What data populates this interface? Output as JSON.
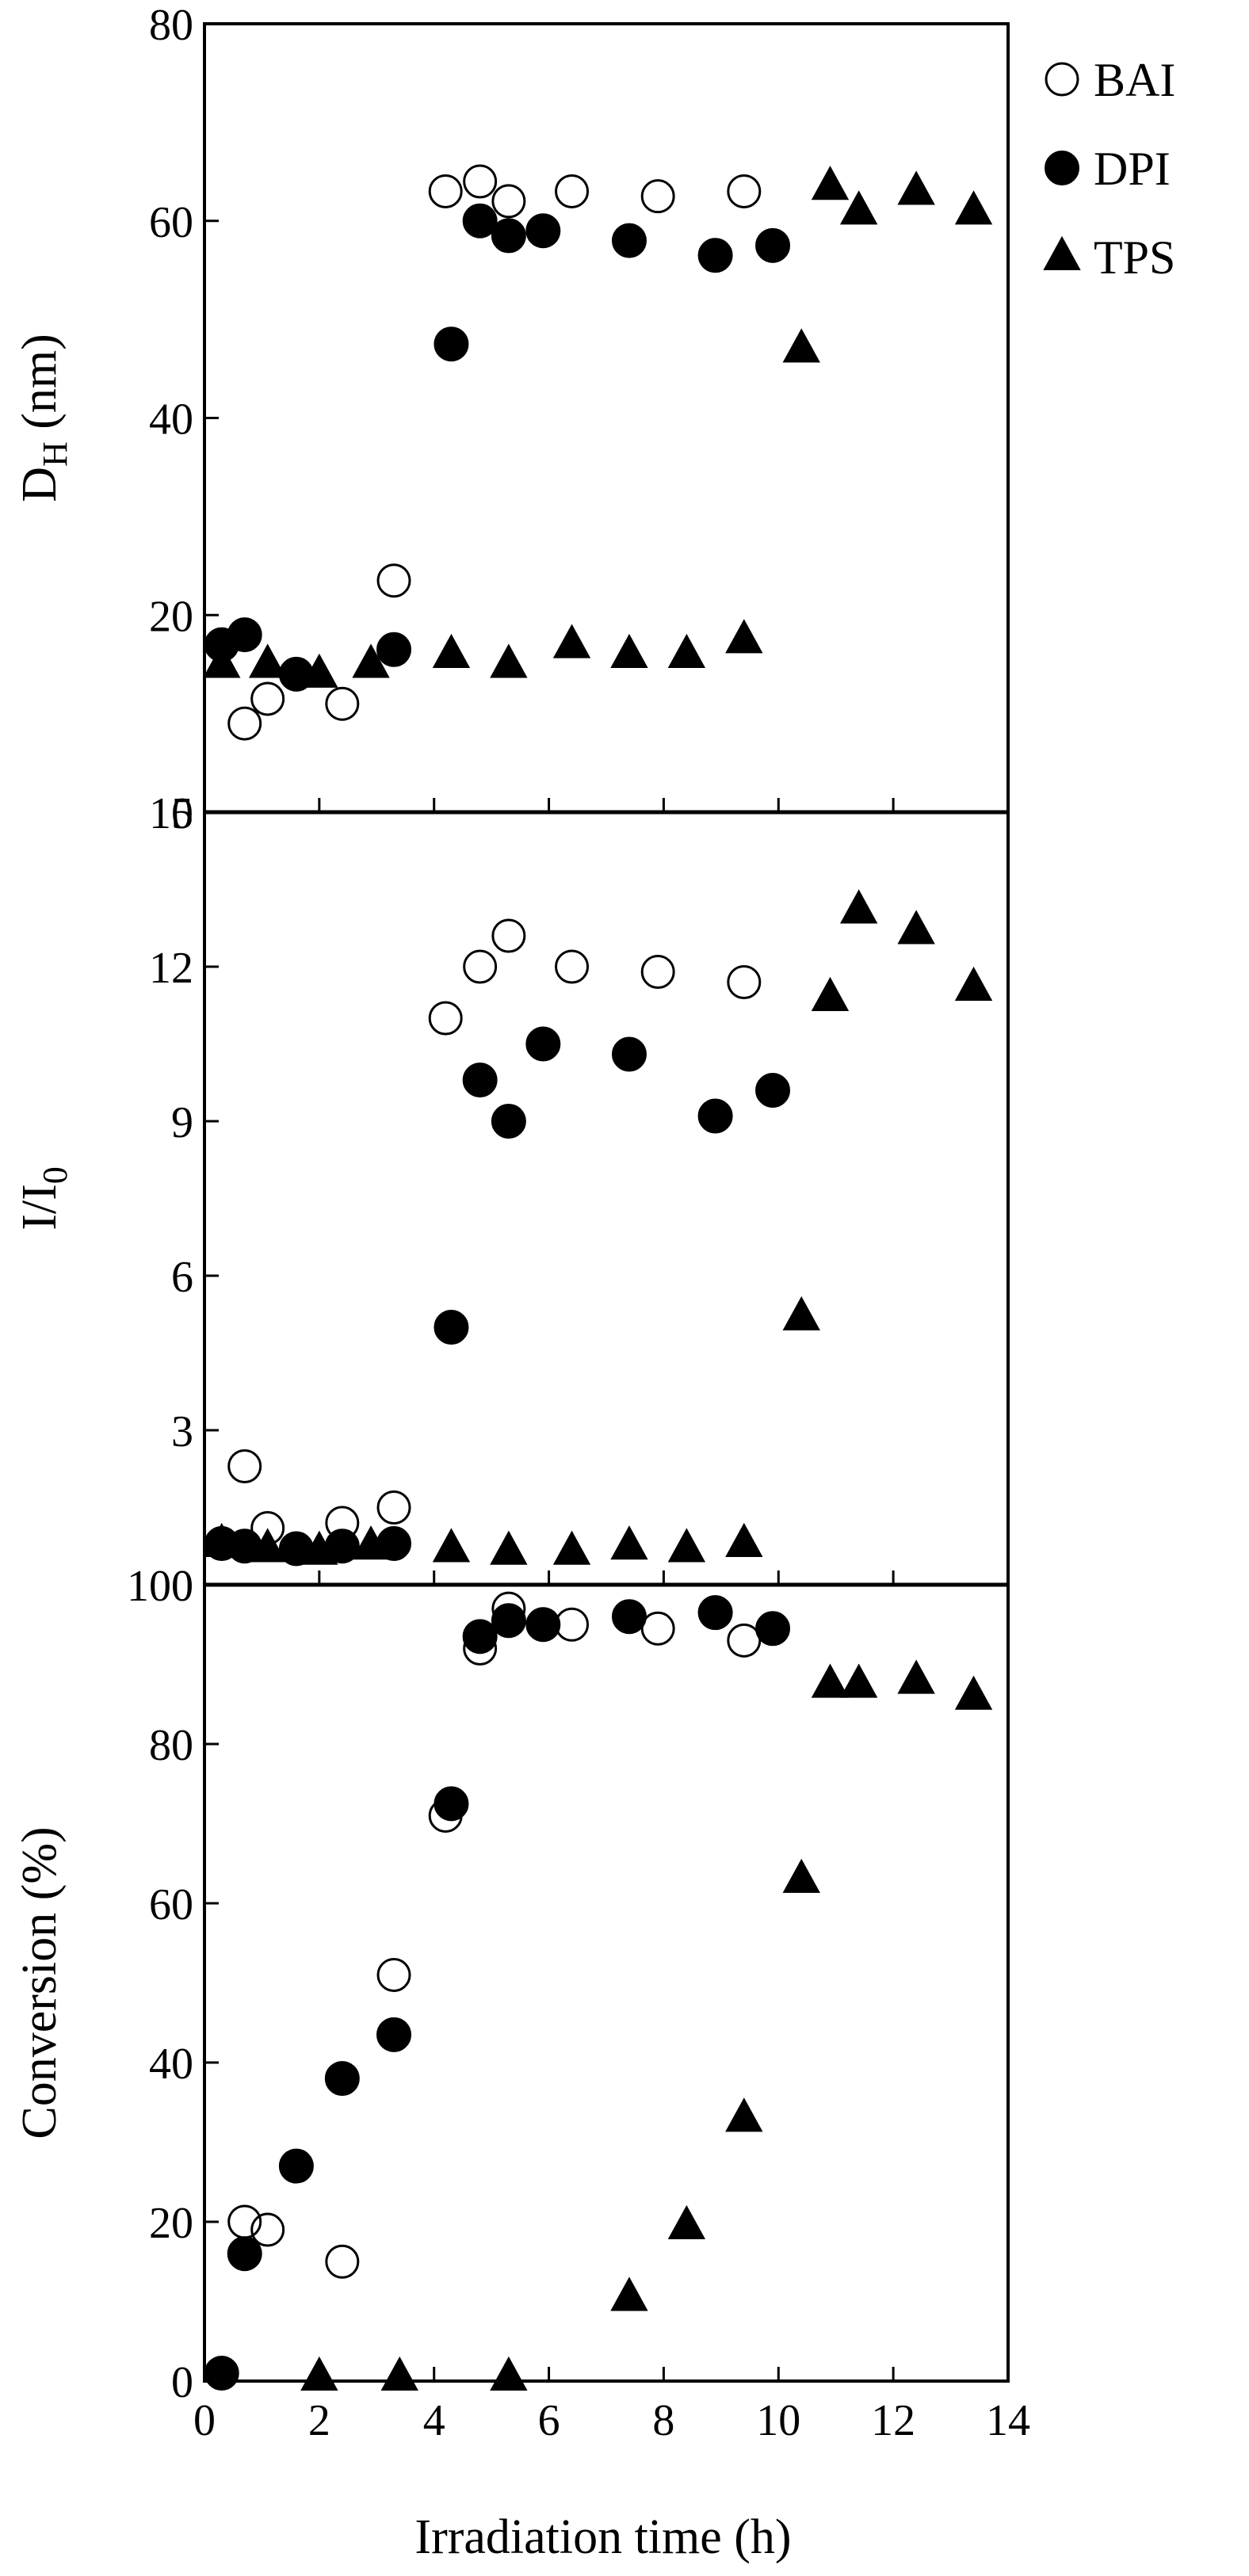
{
  "figure": {
    "xlabel": "Irradiation time (h)",
    "legend": {
      "placement": "top-right",
      "entries": [
        {
          "name": "BAI",
          "marker": "open-circle"
        },
        {
          "name": "DPI",
          "marker": "filled-circle"
        },
        {
          "name": "TPS",
          "marker": "filled-triangle"
        }
      ]
    },
    "colors": {
      "marker": "#000000",
      "background": "#ffffff"
    }
  },
  "chart_data": [
    {
      "type": "scatter",
      "panel": "top",
      "title": "",
      "xlabel": "",
      "ylabel_main": "D",
      "ylabel_sub": "H",
      "ylabel_tail": " (nm)",
      "xlim": [
        0,
        14
      ],
      "ylim": [
        0,
        80
      ],
      "xticks": [
        0,
        2,
        4,
        6,
        8,
        10,
        12,
        14
      ],
      "yticks": [
        0,
        20,
        40,
        60,
        80
      ],
      "xtick_labels_shown": false,
      "series": [
        {
          "name": "BAI",
          "marker": "open-circle",
          "points": [
            [
              0.7,
              9
            ],
            [
              1.1,
              11.5
            ],
            [
              2.4,
              11
            ],
            [
              3.3,
              23.5
            ],
            [
              4.2,
              63
            ],
            [
              4.8,
              64
            ],
            [
              5.3,
              62
            ],
            [
              6.4,
              63
            ],
            [
              7.9,
              62.5
            ],
            [
              9.4,
              63
            ]
          ]
        },
        {
          "name": "DPI",
          "marker": "filled-circle",
          "points": [
            [
              0.3,
              17
            ],
            [
              0.7,
              18
            ],
            [
              1.6,
              14
            ],
            [
              3.3,
              16.5
            ],
            [
              4.3,
              47.5
            ],
            [
              4.8,
              60
            ],
            [
              5.3,
              58.5
            ],
            [
              5.9,
              59
            ],
            [
              7.4,
              58
            ],
            [
              8.9,
              56.5
            ],
            [
              9.9,
              57.5
            ]
          ]
        },
        {
          "name": "TPS",
          "marker": "filled-triangle",
          "points": [
            [
              0.3,
              15
            ],
            [
              1.1,
              15
            ],
            [
              2.0,
              14
            ],
            [
              2.9,
              15
            ],
            [
              4.3,
              16
            ],
            [
              5.3,
              15
            ],
            [
              6.4,
              17
            ],
            [
              7.4,
              16
            ],
            [
              8.4,
              16
            ],
            [
              9.4,
              17.5
            ],
            [
              10.4,
              47
            ],
            [
              10.9,
              63.5
            ],
            [
              11.4,
              61
            ],
            [
              12.4,
              63
            ],
            [
              13.4,
              61
            ]
          ]
        }
      ]
    },
    {
      "type": "scatter",
      "panel": "middle",
      "title": "",
      "xlabel": "",
      "ylabel_main": "I/I",
      "ylabel_sub": "0",
      "ylabel_tail": "",
      "xlim": [
        0,
        14
      ],
      "ylim": [
        0,
        15
      ],
      "xticks": [
        0,
        2,
        4,
        6,
        8,
        10,
        12,
        14
      ],
      "yticks": [
        0,
        3,
        6,
        9,
        12,
        15
      ],
      "xtick_labels_shown": false,
      "series": [
        {
          "name": "BAI",
          "marker": "open-circle",
          "points": [
            [
              0.7,
              2.3
            ],
            [
              1.1,
              1.1
            ],
            [
              2.4,
              1.2
            ],
            [
              3.3,
              1.5
            ],
            [
              4.2,
              11.0
            ],
            [
              4.8,
              12.0
            ],
            [
              5.3,
              12.6
            ],
            [
              6.4,
              12.0
            ],
            [
              7.9,
              11.9
            ],
            [
              9.4,
              11.7
            ]
          ]
        },
        {
          "name": "DPI",
          "marker": "filled-circle",
          "points": [
            [
              0.3,
              0.8
            ],
            [
              0.7,
              0.75
            ],
            [
              1.6,
              0.7
            ],
            [
              2.4,
              0.75
            ],
            [
              3.3,
              0.8
            ],
            [
              4.3,
              5.0
            ],
            [
              4.8,
              9.8
            ],
            [
              5.3,
              9.0
            ],
            [
              5.9,
              10.5
            ],
            [
              7.4,
              10.3
            ],
            [
              8.9,
              9.1
            ],
            [
              9.9,
              9.6
            ]
          ]
        },
        {
          "name": "TPS",
          "marker": "filled-triangle",
          "points": [
            [
              0.3,
              0.8
            ],
            [
              1.1,
              0.7
            ],
            [
              2.0,
              0.65
            ],
            [
              2.9,
              0.75
            ],
            [
              4.3,
              0.7
            ],
            [
              5.3,
              0.65
            ],
            [
              6.4,
              0.65
            ],
            [
              7.4,
              0.75
            ],
            [
              8.4,
              0.7
            ],
            [
              9.4,
              0.8
            ],
            [
              10.4,
              5.2
            ],
            [
              10.9,
              11.4
            ],
            [
              11.4,
              13.1
            ],
            [
              12.4,
              12.7
            ],
            [
              13.4,
              11.6
            ]
          ]
        }
      ]
    },
    {
      "type": "scatter",
      "panel": "bottom",
      "title": "",
      "xlabel": "Irradiation time (h)",
      "ylabel_main": "Conversion (%)",
      "ylabel_sub": "",
      "ylabel_tail": "",
      "xlim": [
        0,
        14
      ],
      "ylim": [
        0,
        100
      ],
      "xticks": [
        0,
        2,
        4,
        6,
        8,
        10,
        12,
        14
      ],
      "yticks": [
        0,
        20,
        40,
        60,
        80,
        100
      ],
      "xtick_labels_shown": true,
      "series": [
        {
          "name": "BAI",
          "marker": "open-circle",
          "points": [
            [
              0.7,
              20
            ],
            [
              1.1,
              19
            ],
            [
              2.4,
              15
            ],
            [
              3.3,
              51
            ],
            [
              4.2,
              71
            ],
            [
              4.8,
              92
            ],
            [
              5.3,
              97
            ],
            [
              6.4,
              95
            ],
            [
              7.9,
              94.5
            ],
            [
              9.4,
              93
            ]
          ]
        },
        {
          "name": "DPI",
          "marker": "filled-circle",
          "points": [
            [
              0.3,
              1
            ],
            [
              0.7,
              16
            ],
            [
              1.6,
              27
            ],
            [
              2.4,
              38
            ],
            [
              3.3,
              43.5
            ],
            [
              4.3,
              72.5
            ],
            [
              4.8,
              93.5
            ],
            [
              5.3,
              95.5
            ],
            [
              5.9,
              95
            ],
            [
              7.4,
              96
            ],
            [
              8.9,
              96.5
            ],
            [
              9.9,
              94.5
            ]
          ]
        },
        {
          "name": "TPS",
          "marker": "filled-triangle",
          "points": [
            [
              2.0,
              0.5
            ],
            [
              3.4,
              0.5
            ],
            [
              5.3,
              0.5
            ],
            [
              7.4,
              10.5
            ],
            [
              8.4,
              19.5
            ],
            [
              9.4,
              33
            ],
            [
              10.4,
              63
            ],
            [
              10.9,
              87.5
            ],
            [
              11.4,
              87.5
            ],
            [
              12.4,
              88
            ],
            [
              13.4,
              86
            ]
          ]
        }
      ]
    }
  ]
}
